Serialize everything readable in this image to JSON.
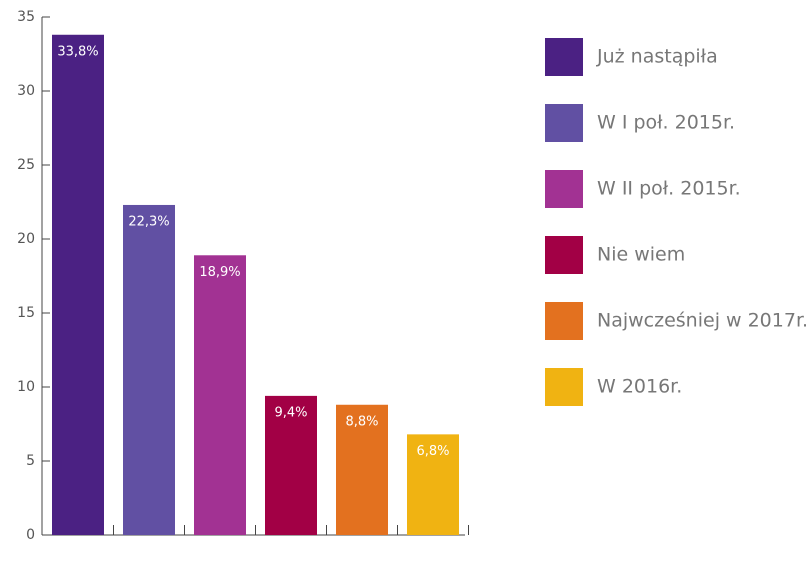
{
  "chart_data": {
    "type": "bar",
    "categories": [
      "Już nastąpiła",
      "W I poł. 2015r.",
      "W II poł. 2015r.",
      "Nie wiem",
      "Najwcześniej w 2017r.",
      "W 2016r."
    ],
    "values": [
      33.8,
      22.3,
      18.9,
      9.4,
      8.8,
      6.8
    ],
    "value_labels": [
      "33,8%",
      "22,3%",
      "18,9%",
      "9,4%",
      "8,8%",
      "6,8%"
    ],
    "colors": [
      "#4b2183",
      "#6150a3",
      "#a23293",
      "#a20045",
      "#e3711f",
      "#f0b312"
    ],
    "ylim": [
      0,
      35
    ],
    "yticks": [
      0,
      5,
      10,
      15,
      20,
      25,
      30,
      35
    ],
    "legend": "right"
  }
}
